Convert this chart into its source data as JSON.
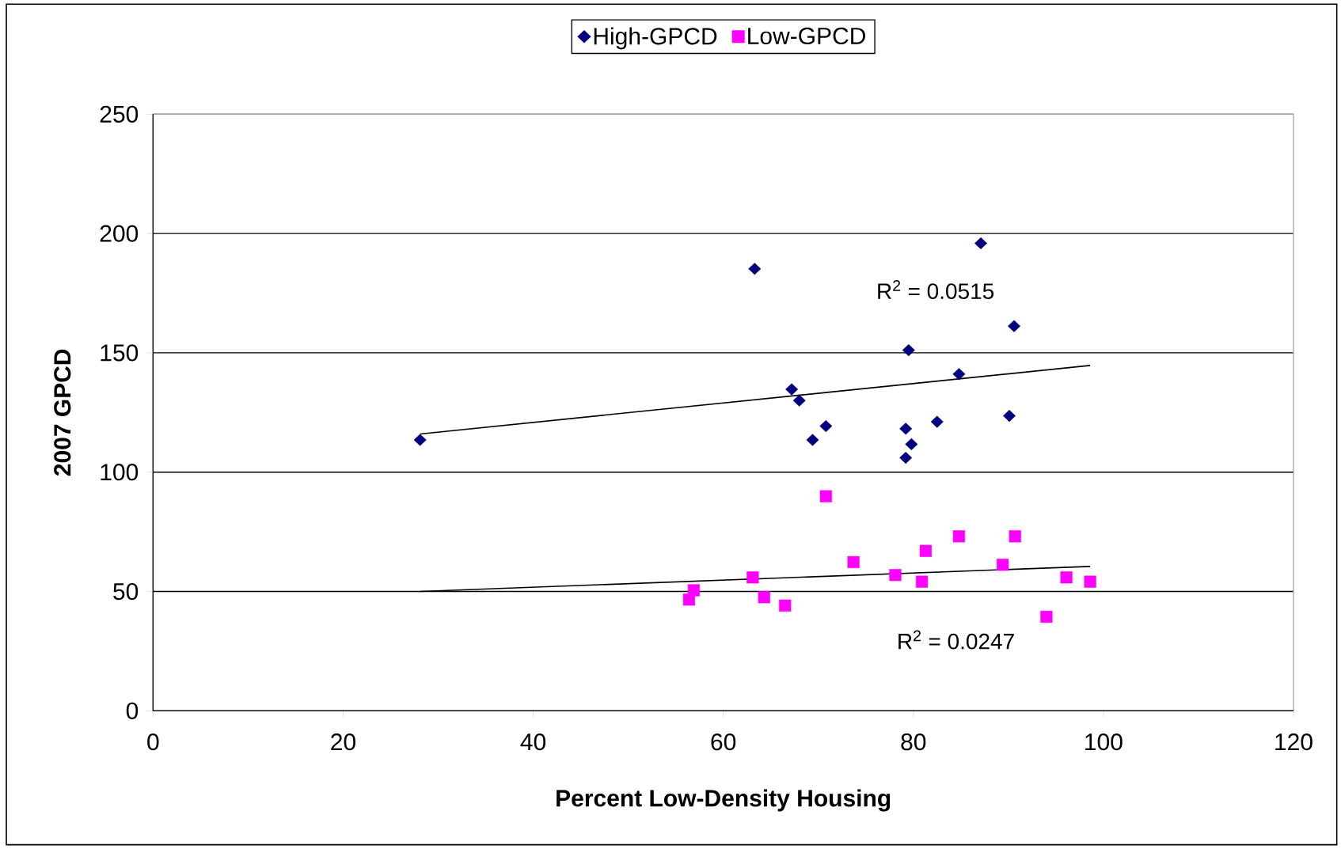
{
  "chart_data": {
    "type": "scatter",
    "xlabel": "Percent Low-Density Housing",
    "ylabel": "2007 GPCD",
    "xlim": [
      0,
      120
    ],
    "xticks": [
      0,
      20,
      40,
      60,
      80,
      100,
      120
    ],
    "ylim": [
      0,
      250
    ],
    "yticks": [
      0,
      50,
      100,
      150,
      200,
      250
    ],
    "grid": "y",
    "legend": "top",
    "series": [
      {
        "name": "High-GPCD",
        "marker": "diamond",
        "color": "#000080",
        "x": [
          28.1,
          63.3,
          67.2,
          68.0,
          69.4,
          70.8,
          79.2,
          79.2,
          79.5,
          79.8,
          82.5,
          84.8,
          87.1,
          90.1,
          90.6
        ],
        "values": [
          113.5,
          185.2,
          134.7,
          130.0,
          113.5,
          119.3,
          118.2,
          106.0,
          151.1,
          111.7,
          121.1,
          141.1,
          195.9,
          123.6,
          161.2
        ]
      },
      {
        "name": "Low-GPCD",
        "marker": "square",
        "color": "#ff00ff",
        "x": [
          56.4,
          56.9,
          63.1,
          64.3,
          66.5,
          70.8,
          73.7,
          78.1,
          80.9,
          81.3,
          84.8,
          89.4,
          90.7,
          94.0,
          96.1,
          98.6
        ],
        "values": [
          46.6,
          50.5,
          55.9,
          47.6,
          44.1,
          89.9,
          62.3,
          56.9,
          54.1,
          67.0,
          73.1,
          61.2,
          73.1,
          39.4,
          55.9,
          54.1
        ]
      },
      {
        "type": "line",
        "color": "#000000",
        "x": [
          28.1,
          98.6
        ],
        "values": [
          116.0,
          144.7
        ]
      },
      {
        "type": "line",
        "color": "#000000",
        "x": [
          28.1,
          98.6
        ],
        "values": [
          50.0,
          60.5
        ]
      }
    ],
    "annotations": [
      "R$^{2}$ = 0.0515",
      "R$^{2}$ = 0.0247"
    ]
  }
}
